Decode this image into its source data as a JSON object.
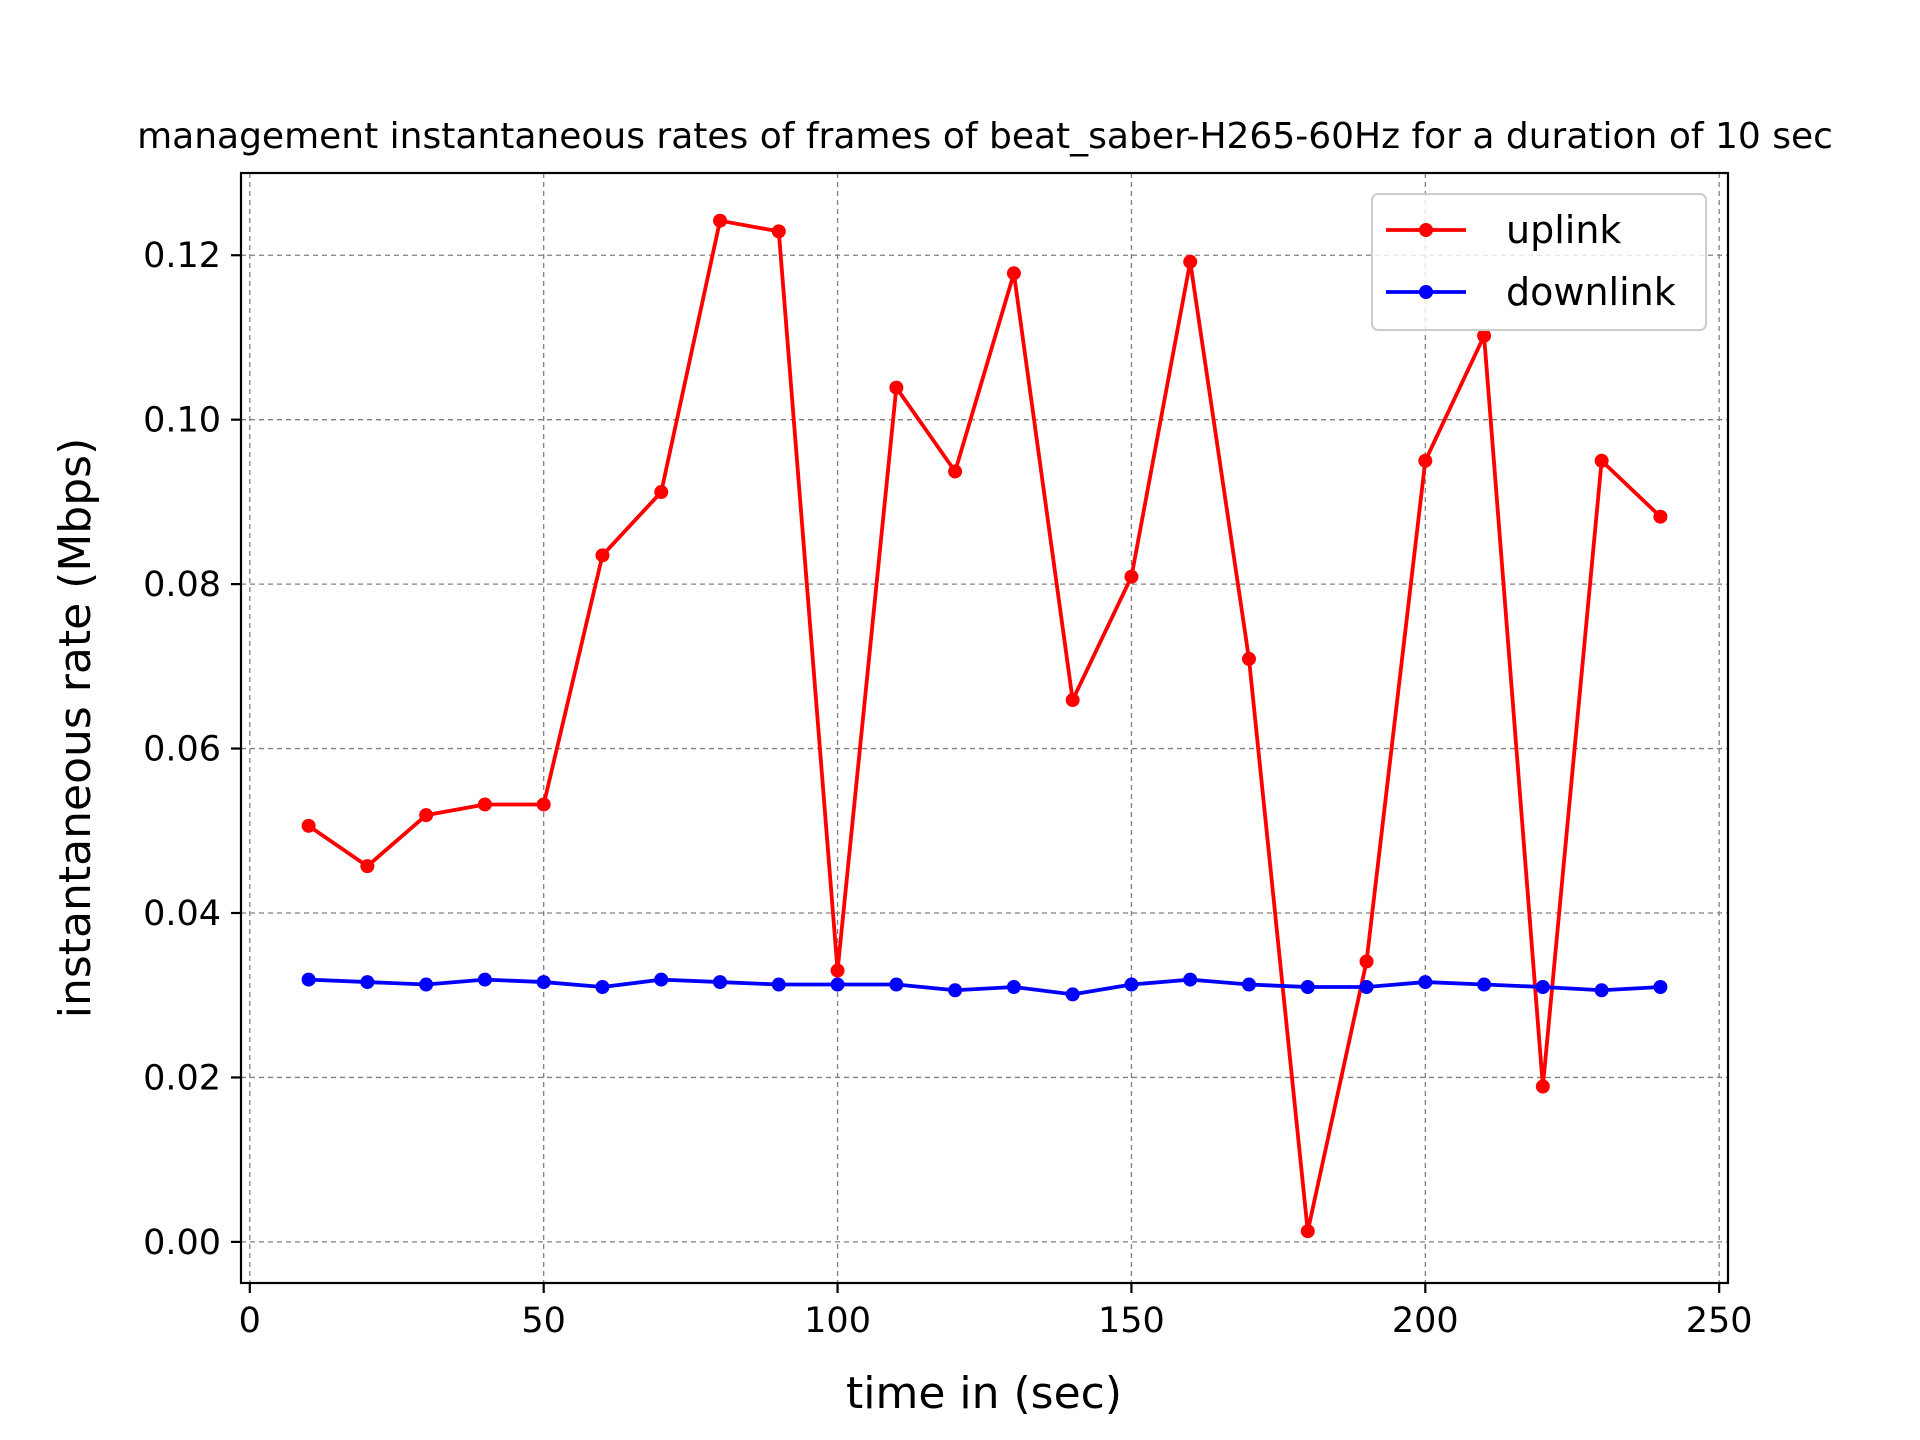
{
  "chart_data": {
    "type": "line",
    "title": "management instantaneous rates of frames of beat_saber-H265-60Hz for a duration of 10 sec",
    "xlabel": "time in (sec)",
    "ylabel": "instantaneous rate (Mbps)",
    "xlim": [
      -1.5,
      251.5
    ],
    "ylim": [
      -0.005,
      0.13
    ],
    "xticks": [
      0,
      50,
      100,
      150,
      200,
      250
    ],
    "xtick_labels": [
      "0",
      "50",
      "100",
      "150",
      "200",
      "250"
    ],
    "yticks": [
      0.0,
      0.02,
      0.04,
      0.06,
      0.08,
      0.1,
      0.12
    ],
    "ytick_labels": [
      "0.00",
      "0.02",
      "0.04",
      "0.06",
      "0.08",
      "0.10",
      "0.12"
    ],
    "grid": true,
    "legend_position": "top-right",
    "x": [
      10,
      20,
      30,
      40,
      50,
      60,
      70,
      80,
      90,
      100,
      110,
      120,
      130,
      140,
      150,
      160,
      170,
      180,
      190,
      200,
      210,
      220,
      230,
      240
    ],
    "series": [
      {
        "name": "uplink",
        "color": "#ff0000",
        "values": [
          0.0506,
          0.0457,
          0.0519,
          0.0532,
          0.0532,
          0.0835,
          0.0912,
          0.1242,
          0.1229,
          0.033,
          0.1039,
          0.0937,
          0.1178,
          0.0659,
          0.0809,
          0.1192,
          0.0709,
          0.0013,
          0.0341,
          0.095,
          0.1102,
          0.0189,
          0.095,
          0.0882
        ]
      },
      {
        "name": "downlink",
        "color": "#0000ff",
        "values": [
          0.0319,
          0.0316,
          0.0313,
          0.0319,
          0.0316,
          0.031,
          0.0319,
          0.0316,
          0.0313,
          0.0313,
          0.0313,
          0.0306,
          0.031,
          0.0301,
          0.0313,
          0.0319,
          0.0313,
          0.031,
          0.031,
          0.0316,
          0.0313,
          0.031,
          0.0306,
          0.031
        ]
      }
    ]
  }
}
